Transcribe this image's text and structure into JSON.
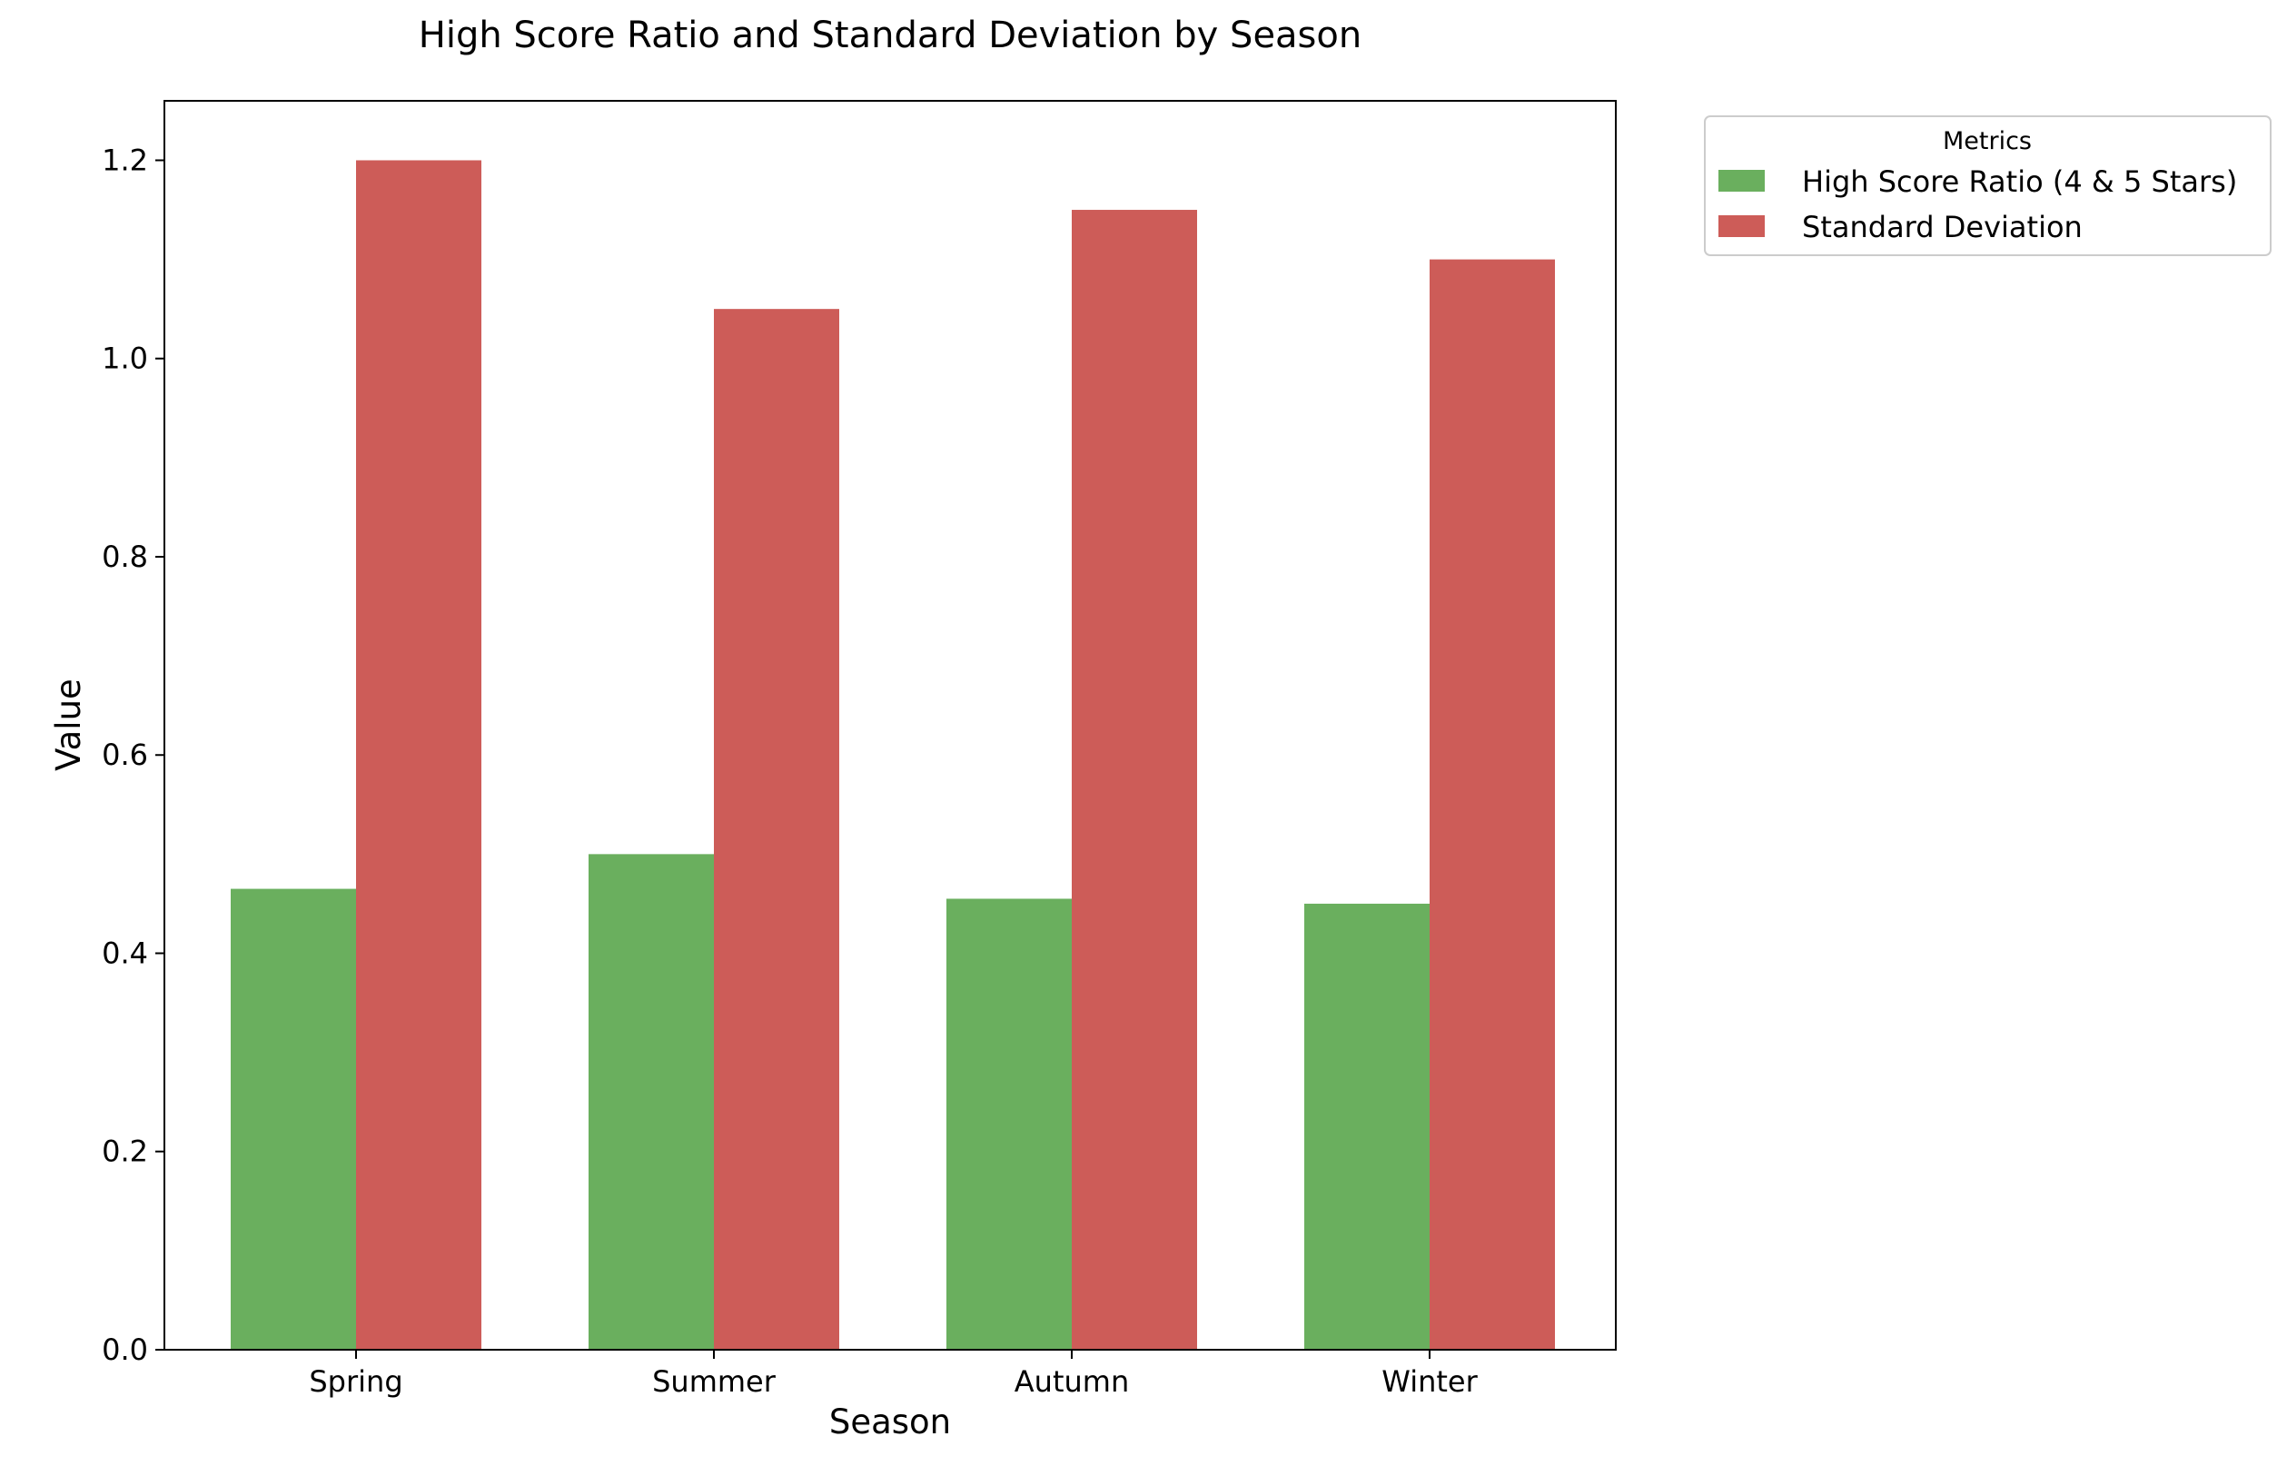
{
  "chart_data": {
    "type": "bar",
    "title": "High Score Ratio and Standard Deviation by Season",
    "xlabel": "Season",
    "ylabel": "Value",
    "categories": [
      "Spring",
      "Summer",
      "Autumn",
      "Winter"
    ],
    "series": [
      {
        "name": "High Score Ratio (4 & 5 Stars)",
        "values": [
          0.465,
          0.5,
          0.455,
          0.45
        ],
        "color": "#6aaf5e"
      },
      {
        "name": "Standard Deviation",
        "values": [
          1.2,
          1.05,
          1.15,
          1.1
        ],
        "color": "#cd5c58"
      }
    ],
    "ylim": [
      0,
      1.26
    ],
    "yticks": [
      0.0,
      0.2,
      0.4,
      0.6,
      0.8,
      1.0,
      1.2
    ],
    "ytick_labels": [
      "0.0",
      "0.2",
      "0.4",
      "0.6",
      "0.8",
      "1.0",
      "1.2"
    ],
    "grid": false,
    "legend": {
      "title": "Metrics",
      "placement": "outside upper right"
    }
  }
}
